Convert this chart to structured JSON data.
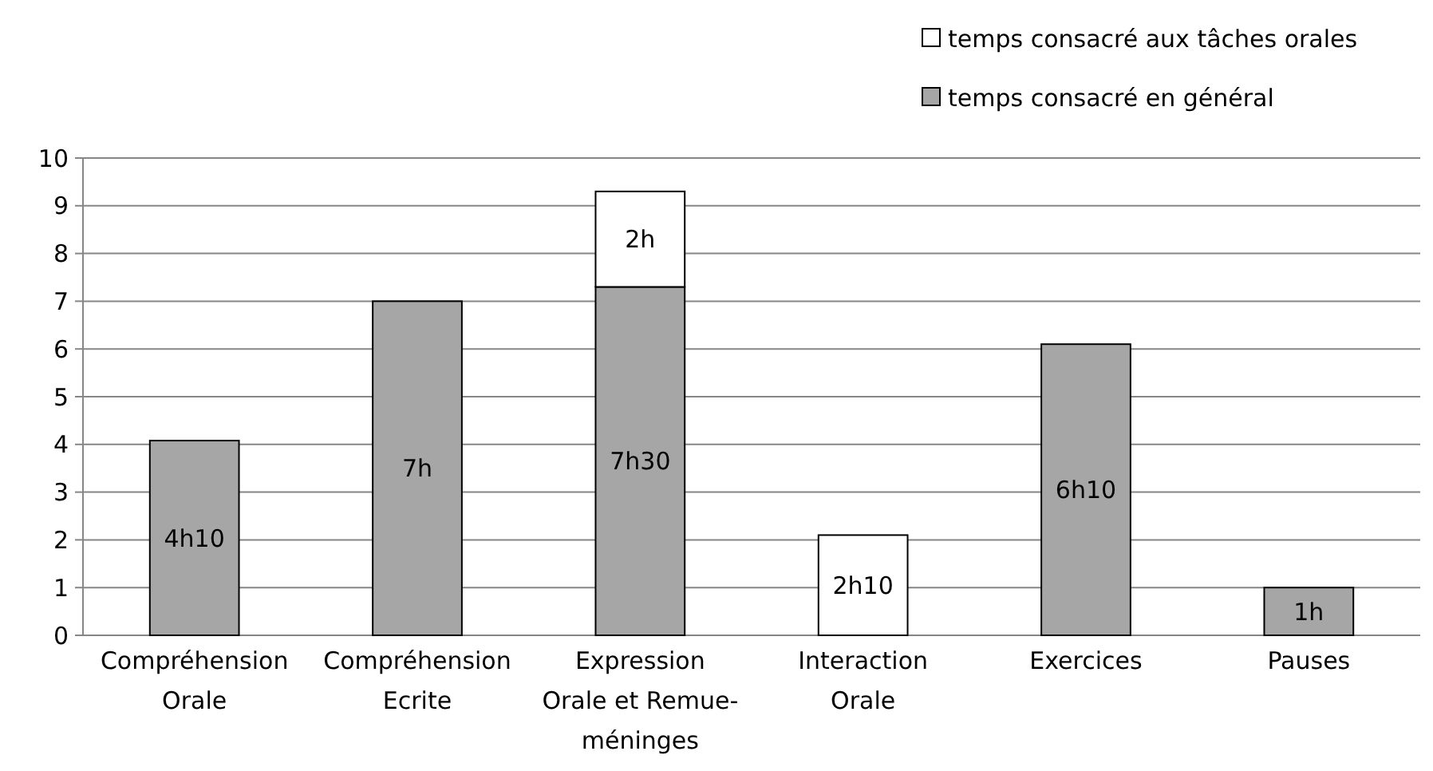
{
  "chart_data": {
    "type": "bar",
    "stacked": true,
    "categories": [
      "Compréhension Orale",
      "Compréhension Ecrite",
      "Expression Orale et Remue-méninges",
      "Interaction Orale",
      "Exercices",
      "Pauses"
    ],
    "series": [
      {
        "name": "temps consacré en général",
        "color": "#a6a6a6",
        "values": [
          4.08,
          7,
          7.3,
          null,
          6.1,
          1
        ],
        "value_labels": [
          "4h10",
          "7h",
          "7h30",
          null,
          "6h10",
          "1h"
        ]
      },
      {
        "name": "temps consacré aux tâches orales",
        "color": "#ffffff",
        "values": [
          null,
          null,
          2,
          2.1,
          null,
          null
        ],
        "value_labels": [
          null,
          null,
          "2h",
          "2h10",
          null,
          null
        ]
      }
    ],
    "ylim": [
      0,
      10
    ],
    "yticks": [
      0,
      1,
      2,
      3,
      4,
      5,
      6,
      7,
      8,
      9,
      10
    ],
    "grid": "y",
    "legend": "top right"
  }
}
